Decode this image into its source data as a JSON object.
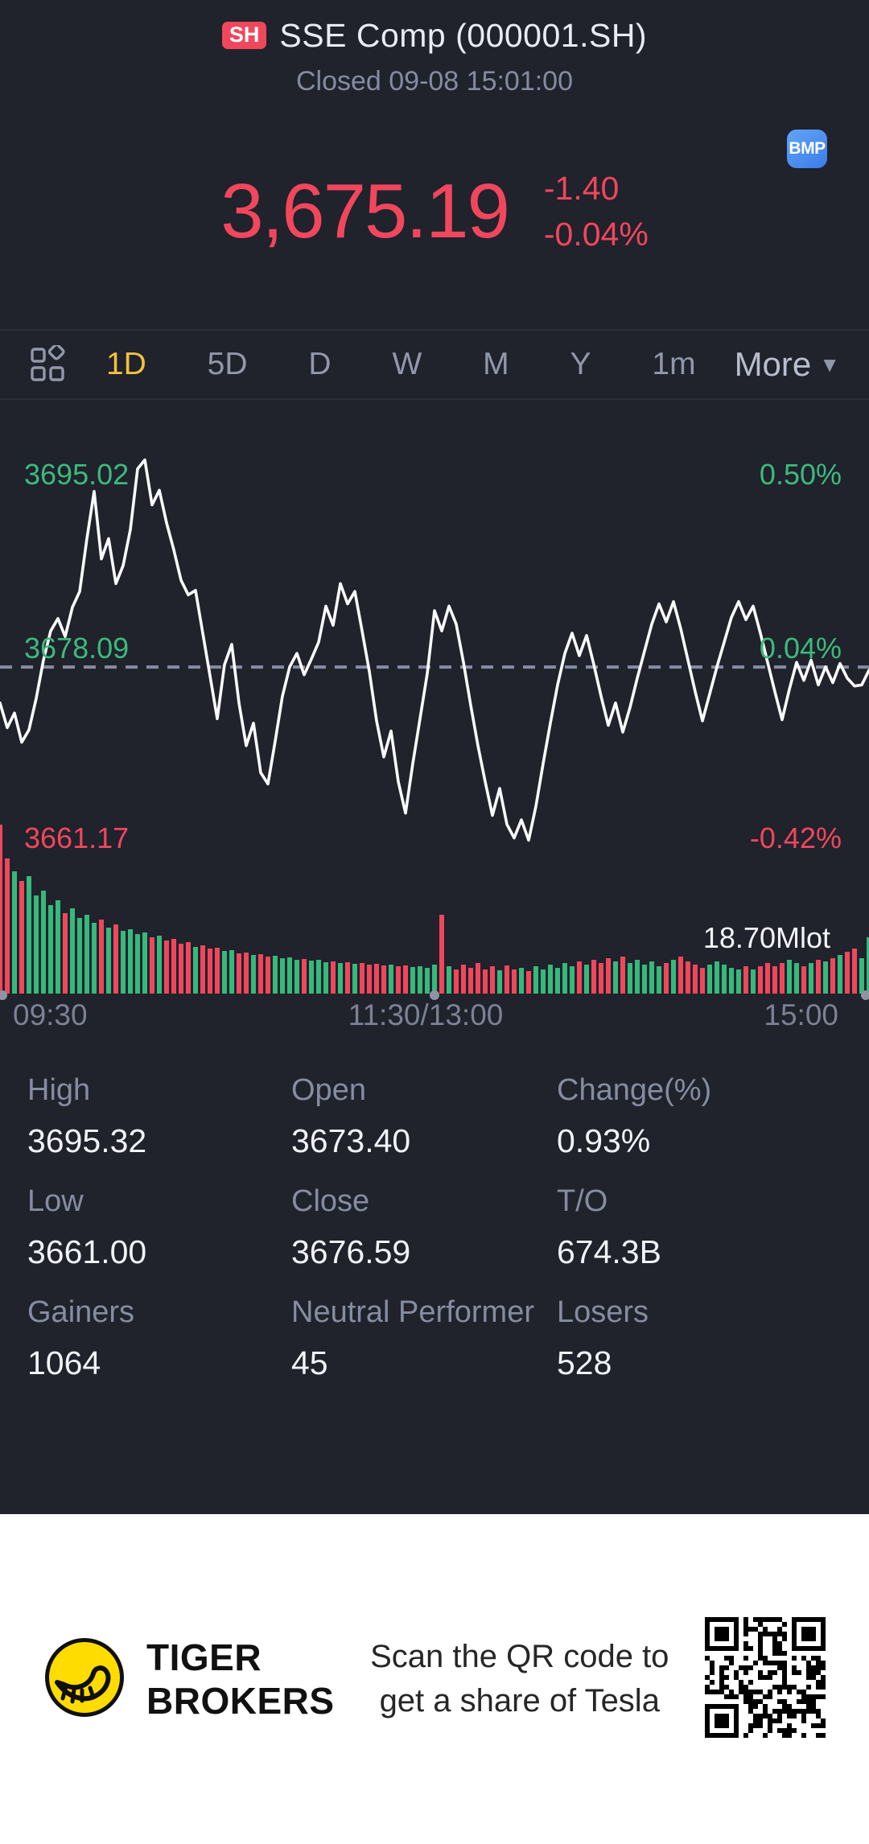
{
  "header": {
    "market_badge": "SH",
    "title": "SSE Comp (000001.SH)",
    "status": "Closed 09-08 15:01:00"
  },
  "quote": {
    "price": "3,675.19",
    "change": "-1.40",
    "change_pct": "-0.04%",
    "tag": "BMP"
  },
  "toolbar": {
    "tabs": [
      "1D",
      "5D",
      "D",
      "W",
      "M",
      "Y",
      "1m"
    ],
    "active_tab": "1D",
    "more_label": "More"
  },
  "chart_data": {
    "type": "line",
    "title": "SSE Comp 1D intraday",
    "x_axis": [
      "09:30",
      "11:30/13:00",
      "15:00"
    ],
    "left_labels": {
      "high": "3695.02",
      "mid": "3678.09",
      "low": "3661.17"
    },
    "right_labels": {
      "high": "0.50%",
      "mid": "0.04%",
      "low": "-0.42%"
    },
    "volume_label": "18.70Mlot",
    "prev_close": 3676.59,
    "pct_top": 0.5,
    "pct_bottom": -0.42,
    "grid": "dashed-prev-close-only",
    "legend": "none",
    "prices": [
      3673.4,
      3671.2,
      3672.5,
      3669.9,
      3671.0,
      3673.8,
      3677.2,
      3679.8,
      3680.9,
      3679.3,
      3681.9,
      3683.3,
      3688.0,
      3692.2,
      3686.2,
      3688.0,
      3684.0,
      3685.6,
      3688.8,
      3694.2,
      3695.0,
      3691.0,
      3692.3,
      3689.4,
      3687.0,
      3684.3,
      3683.0,
      3683.4,
      3679.6,
      3675.8,
      3672.0,
      3676.8,
      3678.6,
      3673.4,
      3669.6,
      3671.6,
      3667.2,
      3666.2,
      3670.0,
      3674.0,
      3676.6,
      3677.8,
      3675.9,
      3677.3,
      3678.8,
      3682.0,
      3680.3,
      3684.0,
      3682.2,
      3683.3,
      3679.8,
      3676.2,
      3671.8,
      3668.6,
      3670.9,
      3666.4,
      3663.6,
      3668.0,
      3672.0,
      3676.0,
      3681.6,
      3679.8,
      3682.0,
      3680.4,
      3677.0,
      3673.2,
      3669.6,
      3666.4,
      3663.4,
      3665.8,
      3662.6,
      3661.4,
      3663.0,
      3661.2,
      3664.2,
      3668.0,
      3671.6,
      3675.0,
      3677.8,
      3679.6,
      3677.6,
      3679.4,
      3676.8,
      3674.0,
      3671.4,
      3673.4,
      3670.8,
      3673.0,
      3675.6,
      3678.0,
      3680.4,
      3682.2,
      3680.6,
      3682.4,
      3680.0,
      3677.2,
      3674.4,
      3671.8,
      3674.2,
      3676.6,
      3678.8,
      3681.0,
      3682.4,
      3680.8,
      3682.0,
      3679.6,
      3677.0,
      3674.4,
      3671.9,
      3674.6,
      3677.0,
      3675.4,
      3677.2,
      3675.0,
      3676.6,
      3675.2,
      3676.9,
      3675.6,
      3674.9,
      3675.0,
      3676.3
    ],
    "volumes": [
      210,
      168,
      152,
      140,
      146,
      122,
      128,
      110,
      116,
      100,
      106,
      94,
      98,
      88,
      92,
      82,
      86,
      78,
      80,
      74,
      76,
      70,
      72,
      66,
      68,
      62,
      64,
      58,
      60,
      56,
      57,
      53,
      54,
      50,
      51,
      48,
      49,
      46,
      47,
      44,
      45,
      42,
      43,
      41,
      42,
      39,
      40,
      38,
      39,
      37,
      38,
      36,
      37,
      35,
      36,
      34,
      35,
      33,
      34,
      32,
      36,
      98,
      34,
      30,
      36,
      32,
      38,
      30,
      34,
      29,
      35,
      30,
      32,
      28,
      34,
      30,
      36,
      32,
      38,
      34,
      40,
      36,
      42,
      38,
      44,
      40,
      46,
      38,
      42,
      36,
      40,
      34,
      38,
      42,
      46,
      40,
      36,
      32,
      36,
      40,
      36,
      32,
      30,
      34,
      30,
      34,
      38,
      34,
      38,
      42,
      38,
      34,
      38,
      42,
      40,
      44,
      48,
      52,
      56,
      44,
      70
    ]
  },
  "stats": {
    "items": [
      {
        "label": "High",
        "value": "3695.32"
      },
      {
        "label": "Open",
        "value": "3673.40"
      },
      {
        "label": "Change(%)",
        "value": "0.93%"
      },
      {
        "label": "Low",
        "value": "3661.00"
      },
      {
        "label": "Close",
        "value": "3676.59"
      },
      {
        "label": "T/O",
        "value": "674.3B"
      },
      {
        "label": "Gainers",
        "value": "1064"
      },
      {
        "label": "Neutral Performer",
        "value": "45"
      },
      {
        "label": "Losers",
        "value": "528"
      }
    ]
  },
  "footer": {
    "brand_line1": "TIGER",
    "brand_line2": "BROKERS",
    "promo_line1": "Scan the QR code to",
    "promo_line2": "get a share of Tesla"
  },
  "colors": {
    "up": "#36b97c",
    "down": "#f0475c",
    "line": "#fafbfd",
    "dashed": "#868ca0",
    "accent_yellow": "#f2c23e",
    "brand_yellow": "#ffdc00",
    "bmp_blue": "#478bf2"
  }
}
